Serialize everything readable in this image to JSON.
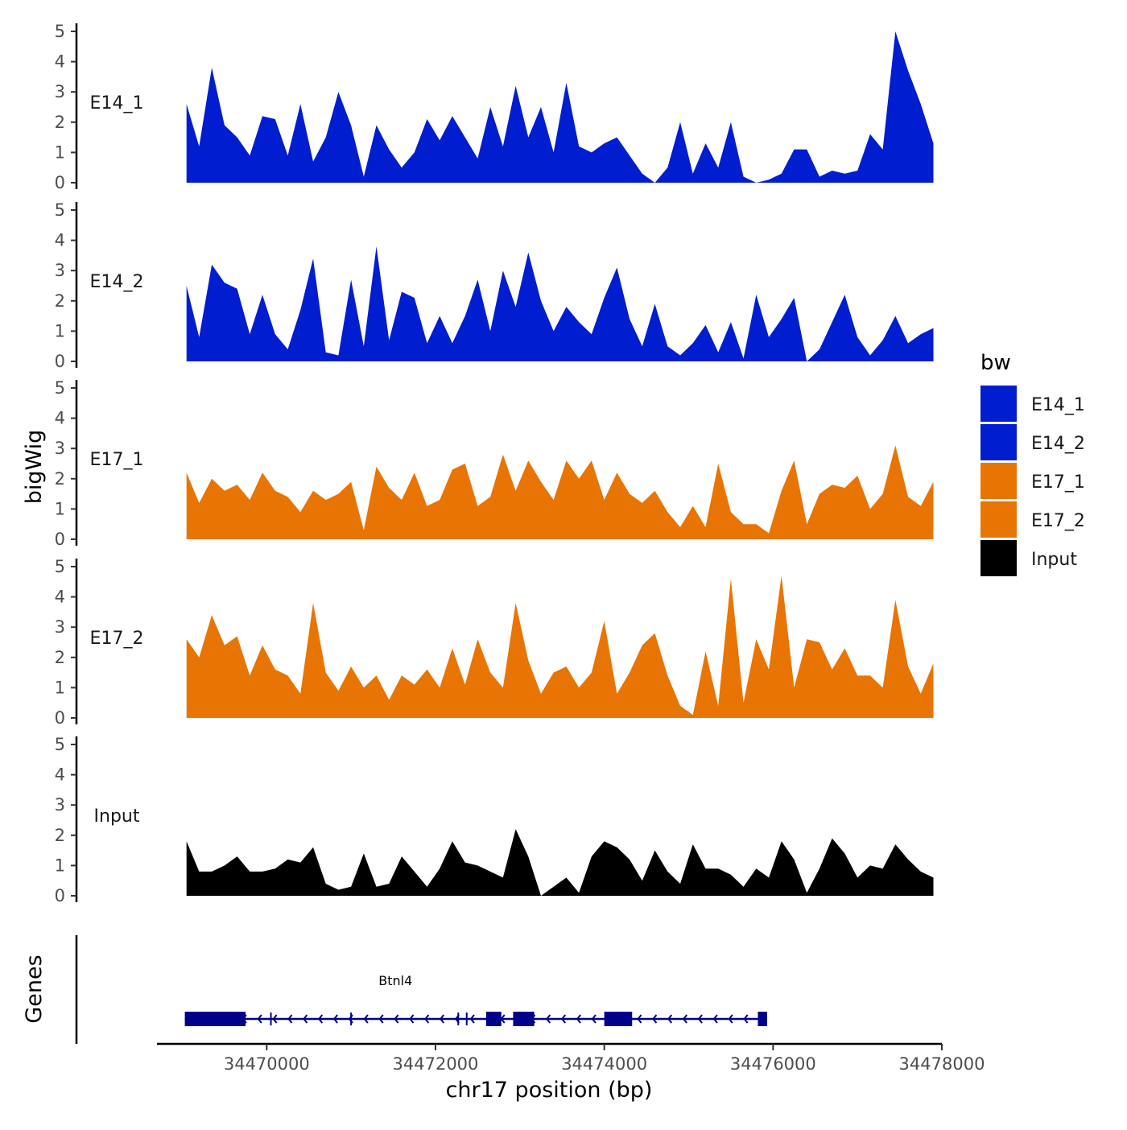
{
  "chart_data": {
    "type": "area",
    "title": "",
    "ylabel": "bigWig",
    "xlabel": "chr17 position (bp)",
    "ylim": [
      0,
      5
    ],
    "y_ticks": [
      0,
      1,
      2,
      3,
      4,
      5
    ],
    "x_range": [
      34468700,
      34478000
    ],
    "x_ticks": [
      34470000,
      34472000,
      34474000,
      34476000,
      34478000
    ],
    "x_tick_labels": [
      "34470000",
      "34472000",
      "34474000",
      "34476000",
      "34478000"
    ],
    "x": [
      34469050,
      34469200,
      34469350,
      34469500,
      34469650,
      34469800,
      34469950,
      34470100,
      34470250,
      34470400,
      34470550,
      34470700,
      34470850,
      34471000,
      34471150,
      34471300,
      34471450,
      34471600,
      34471750,
      34471900,
      34472050,
      34472200,
      34472350,
      34472500,
      34472650,
      34472800,
      34472950,
      34473100,
      34473250,
      34473400,
      34473550,
      34473700,
      34473850,
      34474000,
      34474150,
      34474300,
      34474450,
      34474600,
      34474750,
      34474900,
      34475050,
      34475200,
      34475350,
      34475500,
      34475650,
      34475800,
      34475950,
      34476100,
      34476250,
      34476400,
      34476550,
      34476700,
      34476850,
      34477000,
      34477150,
      34477300,
      34477450,
      34477600,
      34477750,
      34477900
    ],
    "series": [
      {
        "name": "E14_1",
        "color": "#001ecf",
        "values": [
          2.6,
          1.2,
          3.8,
          1.9,
          1.5,
          0.9,
          2.2,
          2.1,
          0.9,
          2.6,
          0.7,
          1.5,
          3.0,
          1.9,
          0.2,
          1.9,
          1.1,
          0.5,
          1.0,
          2.1,
          1.4,
          2.2,
          1.5,
          0.8,
          2.5,
          1.2,
          3.2,
          1.5,
          2.5,
          1.0,
          3.3,
          1.2,
          1.0,
          1.3,
          1.5,
          0.9,
          0.3,
          0.0,
          0.5,
          2.0,
          0.3,
          1.3,
          0.5,
          2.0,
          0.2,
          0.0,
          0.1,
          0.3,
          1.1,
          1.1,
          0.2,
          0.4,
          0.3,
          0.4,
          1.6,
          1.1,
          5.0,
          3.7,
          2.6,
          1.3
        ]
      },
      {
        "name": "E14_2",
        "color": "#001ecf",
        "values": [
          2.5,
          0.8,
          3.2,
          2.6,
          2.4,
          0.9,
          2.2,
          0.9,
          0.4,
          1.7,
          3.4,
          0.3,
          0.2,
          2.7,
          0.5,
          3.8,
          0.7,
          2.3,
          2.1,
          0.6,
          1.5,
          0.6,
          1.5,
          2.7,
          1.0,
          3.0,
          1.8,
          3.6,
          2.0,
          1.0,
          1.8,
          1.3,
          0.9,
          2.1,
          3.1,
          1.4,
          0.5,
          1.9,
          0.5,
          0.2,
          0.6,
          1.2,
          0.3,
          1.3,
          0.1,
          2.2,
          0.8,
          1.4,
          2.1,
          0.0,
          0.4,
          1.3,
          2.2,
          0.8,
          0.2,
          0.7,
          1.5,
          0.6,
          0.9,
          1.1
        ]
      },
      {
        "name": "E17_1",
        "color": "#e87503",
        "values": [
          2.2,
          1.2,
          2.0,
          1.6,
          1.8,
          1.3,
          2.2,
          1.6,
          1.4,
          0.9,
          1.6,
          1.3,
          1.5,
          1.9,
          0.3,
          2.4,
          1.7,
          1.3,
          2.2,
          1.1,
          1.3,
          2.3,
          2.5,
          1.1,
          1.4,
          2.8,
          1.6,
          2.6,
          1.9,
          1.3,
          2.6,
          2.0,
          2.6,
          1.3,
          2.2,
          1.5,
          1.2,
          1.6,
          0.9,
          0.4,
          1.1,
          0.4,
          2.5,
          0.9,
          0.5,
          0.5,
          0.2,
          1.6,
          2.6,
          0.5,
          1.5,
          1.8,
          1.7,
          2.1,
          1.0,
          1.5,
          3.1,
          1.4,
          1.1,
          1.9
        ]
      },
      {
        "name": "E17_2",
        "color": "#e87503",
        "values": [
          2.6,
          2.0,
          3.4,
          2.4,
          2.7,
          1.4,
          2.4,
          1.6,
          1.4,
          0.8,
          3.8,
          1.5,
          0.9,
          1.7,
          1.0,
          1.4,
          0.6,
          1.4,
          1.1,
          1.6,
          1.0,
          2.3,
          1.1,
          2.6,
          1.5,
          1.0,
          3.8,
          1.9,
          0.8,
          1.5,
          1.7,
          1.0,
          1.5,
          3.2,
          0.8,
          1.5,
          2.4,
          2.8,
          1.4,
          0.4,
          0.1,
          2.2,
          0.4,
          4.6,
          0.5,
          2.6,
          1.6,
          4.7,
          1.0,
          2.6,
          2.5,
          1.6,
          2.3,
          1.4,
          1.4,
          1.0,
          3.9,
          1.7,
          0.8,
          1.8
        ]
      },
      {
        "name": "Input",
        "color": "#000000",
        "values": [
          1.8,
          0.8,
          0.8,
          1.0,
          1.3,
          0.8,
          0.8,
          0.9,
          1.2,
          1.1,
          1.6,
          0.4,
          0.2,
          0.3,
          1.4,
          0.3,
          0.4,
          1.3,
          0.8,
          0.3,
          0.9,
          1.8,
          1.1,
          1.0,
          0.8,
          0.6,
          2.2,
          1.3,
          0.0,
          0.3,
          0.6,
          0.1,
          1.3,
          1.8,
          1.6,
          1.2,
          0.5,
          1.5,
          0.8,
          0.4,
          1.7,
          0.9,
          0.9,
          0.7,
          0.3,
          0.9,
          0.6,
          1.8,
          1.2,
          0.1,
          0.9,
          1.9,
          1.4,
          0.6,
          1.0,
          0.9,
          1.7,
          1.2,
          0.8,
          0.6
        ]
      }
    ],
    "legend": {
      "title": "bw",
      "position": "right"
    },
    "genes": {
      "title": "Genes",
      "color": "#00008b",
      "items": [
        {
          "name": "Btnl4",
          "start": 34469030,
          "end": 34475930,
          "strand": "-"
        }
      ],
      "exons": [
        [
          34469030,
          34469750
        ],
        [
          34472600,
          34472780
        ],
        [
          34472920,
          34473170
        ],
        [
          34474000,
          34474330
        ],
        [
          34475820,
          34475930
        ]
      ],
      "breaks": [
        34470050,
        34471000,
        34472270,
        34472370
      ]
    }
  }
}
